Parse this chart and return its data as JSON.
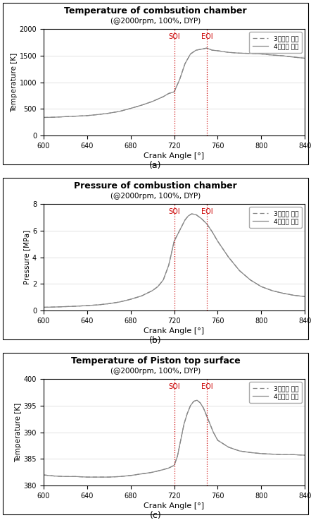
{
  "fig_width": 4.42,
  "fig_height": 7.44,
  "dpi": 100,
  "x_range": [
    600,
    840
  ],
  "x_ticks": [
    600,
    640,
    680,
    720,
    760,
    800,
    840
  ],
  "xlabel": "Crank Angle [°]",
  "SOI": 720,
  "EOI": 750,
  "line_color": "#888888",
  "dashed_color": "#888888",
  "vline_color": "#cc0000",
  "subplot_labels": [
    "(a)",
    "(b)",
    "(c)"
  ],
  "legend_label_dashed": "3차년도 모델",
  "legend_label_solid": "4차년도 모델",
  "chart_a": {
    "title": "Temperature of combsution chamber",
    "subtitle": "(@2000rpm, 100%, DYP)",
    "ylabel": "Temperature [K]",
    "ylim": [
      0,
      2000
    ],
    "yticks": [
      0,
      500,
      1000,
      1500,
      2000
    ],
    "x": [
      600,
      610,
      620,
      630,
      640,
      650,
      660,
      670,
      680,
      690,
      700,
      710,
      715,
      720,
      725,
      730,
      735,
      740,
      745,
      750,
      755,
      760,
      770,
      780,
      790,
      800,
      810,
      820,
      830,
      840
    ],
    "y_solid": [
      340,
      345,
      355,
      365,
      375,
      395,
      420,
      455,
      510,
      570,
      640,
      730,
      790,
      820,
      1050,
      1350,
      1530,
      1600,
      1620,
      1640,
      1600,
      1590,
      1560,
      1545,
      1540,
      1530,
      1510,
      1495,
      1470,
      1450
    ],
    "y_dashed": [
      340,
      345,
      355,
      365,
      375,
      395,
      420,
      455,
      510,
      570,
      640,
      730,
      790,
      820,
      1050,
      1350,
      1530,
      1600,
      1620,
      1640,
      1600,
      1590,
      1560,
      1545,
      1540,
      1530,
      1510,
      1495,
      1470,
      1450
    ]
  },
  "chart_b": {
    "title": "Pressure of combustion chamber",
    "subtitle": "(@2000rpm, 100%, DYP)",
    "ylabel": "Pressure [MPa]",
    "ylim": [
      0,
      8
    ],
    "yticks": [
      0,
      2,
      4,
      6,
      8
    ],
    "x": [
      600,
      610,
      620,
      630,
      640,
      650,
      660,
      670,
      680,
      690,
      700,
      705,
      710,
      715,
      720,
      725,
      730,
      733,
      736,
      740,
      745,
      750,
      755,
      760,
      770,
      780,
      790,
      800,
      810,
      820,
      830,
      840
    ],
    "y_solid": [
      0.25,
      0.27,
      0.3,
      0.33,
      0.38,
      0.43,
      0.52,
      0.65,
      0.85,
      1.1,
      1.5,
      1.8,
      2.3,
      3.4,
      5.2,
      6.0,
      6.8,
      7.1,
      7.25,
      7.2,
      6.9,
      6.5,
      5.9,
      5.2,
      4.0,
      3.0,
      2.3,
      1.8,
      1.5,
      1.3,
      1.15,
      1.05
    ],
    "y_dashed": [
      0.25,
      0.27,
      0.3,
      0.33,
      0.38,
      0.43,
      0.52,
      0.65,
      0.85,
      1.1,
      1.5,
      1.8,
      2.3,
      3.4,
      5.2,
      6.0,
      6.8,
      7.1,
      7.25,
      7.2,
      6.9,
      6.5,
      5.9,
      5.2,
      4.0,
      3.0,
      2.3,
      1.8,
      1.5,
      1.3,
      1.15,
      1.05
    ]
  },
  "chart_c": {
    "title": "Temperature of Piston top surface",
    "subtitle": "(@2000rpm, 100%, DYP)",
    "ylabel": "Temperature [K]",
    "ylim": [
      380,
      400
    ],
    "yticks": [
      380,
      385,
      390,
      395,
      400
    ],
    "x": [
      600,
      610,
      620,
      630,
      640,
      650,
      660,
      670,
      680,
      690,
      700,
      710,
      715,
      720,
      723,
      726,
      729,
      732,
      735,
      738,
      741,
      744,
      747,
      750,
      753,
      756,
      760,
      770,
      780,
      790,
      800,
      810,
      820,
      830,
      840
    ],
    "y_solid": [
      382.0,
      381.8,
      381.7,
      381.7,
      381.6,
      381.6,
      381.6,
      381.7,
      381.9,
      382.2,
      382.5,
      383.0,
      383.3,
      383.8,
      385.5,
      388.5,
      391.5,
      393.5,
      395.0,
      395.8,
      396.0,
      395.5,
      394.5,
      393.0,
      391.5,
      390.0,
      388.5,
      387.2,
      386.5,
      386.2,
      386.0,
      385.9,
      385.8,
      385.8,
      385.7
    ],
    "y_dashed": [
      382.0,
      381.8,
      381.7,
      381.7,
      381.6,
      381.6,
      381.6,
      381.7,
      381.9,
      382.2,
      382.5,
      383.0,
      383.3,
      383.8,
      385.5,
      388.5,
      391.5,
      393.5,
      395.0,
      395.8,
      396.0,
      395.5,
      394.5,
      393.0,
      391.5,
      390.0,
      388.5,
      387.2,
      386.5,
      386.2,
      386.0,
      385.9,
      385.8,
      385.8,
      385.7
    ]
  }
}
